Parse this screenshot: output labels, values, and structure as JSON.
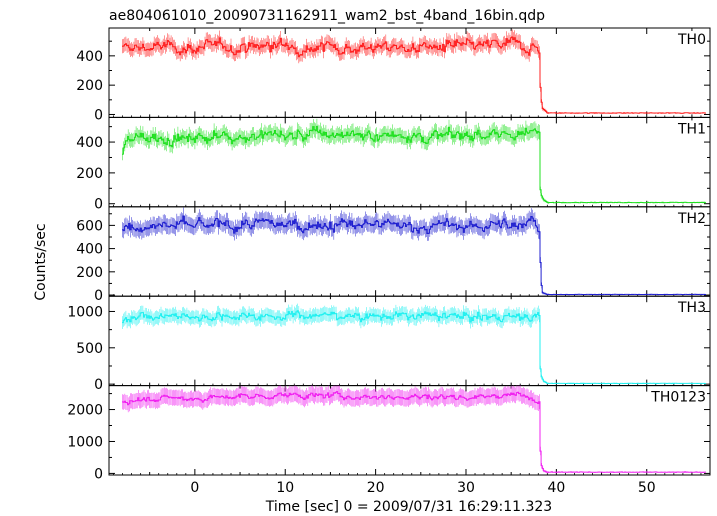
{
  "title": "ae804061010_20090731162911_wam2_bst_4band_16bin.qdp",
  "xlabel": "Time [sec] 0 = 2009/07/31 16:29:11.323",
  "ylabel": "Counts/sec",
  "chart_data": {
    "type": "line",
    "title": "ae804061010_20090731162911_wam2_bst_4band_16bin.qdp",
    "xlabel": "Time [sec] 0 = 2009/07/31 16:29:11.323",
    "ylabel": "Counts/sec",
    "xlim": [
      -9.5,
      57
    ],
    "xticks": [
      0,
      10,
      20,
      30,
      40,
      50
    ],
    "x_start": -8.0,
    "x_step": 0.125,
    "drop_time": 38.2,
    "data_end": 56.5,
    "grid": false,
    "legend": "none",
    "panels": [
      {
        "name": "TH0",
        "color": "#ff2020",
        "ylim": [
          -20,
          590
        ],
        "yticks": [
          0,
          200,
          400
        ],
        "level_segments": [
          [
            -8,
            445
          ],
          [
            -6,
            460
          ],
          [
            0,
            455
          ],
          [
            10,
            470
          ],
          [
            20,
            455
          ],
          [
            30,
            460
          ],
          [
            36,
            480
          ],
          [
            38.0,
            460
          ]
        ],
        "noise": 40,
        "background": 10,
        "tail": [
          [
            38.2,
            260
          ],
          [
            38.3,
            110
          ],
          [
            38.5,
            40
          ],
          [
            39.0,
            15
          ]
        ]
      },
      {
        "name": "TH1",
        "color": "#20e020",
        "ylim": [
          -20,
          560
        ],
        "yticks": [
          0,
          200,
          400
        ],
        "level_segments": [
          [
            -8,
            330
          ],
          [
            -7.6,
            420
          ],
          [
            0,
            430
          ],
          [
            10,
            440
          ],
          [
            20,
            450
          ],
          [
            30,
            440
          ],
          [
            36,
            450
          ],
          [
            38.0,
            450
          ]
        ],
        "noise": 40,
        "background": 8,
        "tail": [
          [
            38.2,
            120
          ],
          [
            38.3,
            60
          ],
          [
            38.6,
            25
          ],
          [
            39.0,
            10
          ]
        ]
      },
      {
        "name": "TH2",
        "color": "#2020d0",
        "ylim": [
          -10,
          760
        ],
        "yticks": [
          0,
          200,
          400,
          600
        ],
        "level_segments": [
          [
            -8,
            560
          ],
          [
            -6,
            600
          ],
          [
            0,
            590
          ],
          [
            10,
            610
          ],
          [
            20,
            600
          ],
          [
            30,
            590
          ],
          [
            36,
            600
          ],
          [
            37.5,
            680
          ],
          [
            38.0,
            580
          ]
        ],
        "noise": 50,
        "background": 5,
        "tail": [
          [
            38.2,
            440
          ],
          [
            38.3,
            120
          ],
          [
            38.5,
            20
          ],
          [
            39.0,
            5
          ]
        ]
      },
      {
        "name": "TH3",
        "color": "#20f0f0",
        "ylim": [
          -20,
          1210
        ],
        "yticks": [
          0,
          500,
          1000
        ],
        "level_segments": [
          [
            -8,
            900
          ],
          [
            -7,
            940
          ],
          [
            0,
            930
          ],
          [
            10,
            950
          ],
          [
            20,
            940
          ],
          [
            30,
            930
          ],
          [
            36,
            930
          ],
          [
            38.0,
            920
          ]
        ],
        "noise": 55,
        "background": 10,
        "tail": [
          [
            38.2,
            300
          ],
          [
            38.3,
            120
          ],
          [
            38.6,
            40
          ],
          [
            39.0,
            15
          ]
        ]
      },
      {
        "name": "TH0123",
        "color": "#f020f0",
        "ylim": [
          -50,
          2750
        ],
        "yticks": [
          0,
          1000,
          2000
        ],
        "level_segments": [
          [
            -8,
            2250
          ],
          [
            -6,
            2350
          ],
          [
            0,
            2350
          ],
          [
            10,
            2450
          ],
          [
            20,
            2400
          ],
          [
            30,
            2400
          ],
          [
            36,
            2450
          ],
          [
            38.0,
            2350
          ]
        ],
        "noise": 90,
        "background": 40,
        "tail": [
          [
            38.2,
            1100
          ],
          [
            38.3,
            300
          ],
          [
            38.6,
            80
          ],
          [
            39.0,
            40
          ]
        ]
      }
    ]
  }
}
